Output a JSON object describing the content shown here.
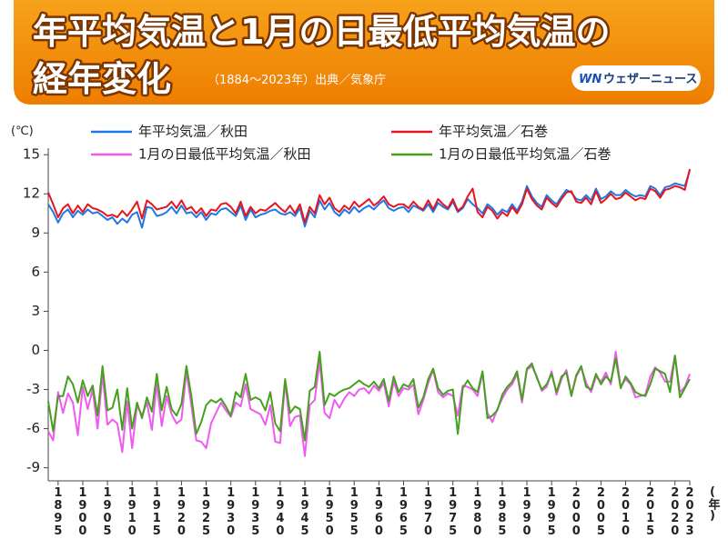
{
  "chart_data": {
    "type": "line",
    "title": [
      "年平均気温と1月の日最低平均気温の",
      "経年変化"
    ],
    "subtitle": "（1884〜2023年）出典／気象庁",
    "brand": {
      "mark": "WN",
      "name": "ウェザーニュース"
    },
    "y_label": "(℃)",
    "x_label": "(年)",
    "x": [
      1893,
      1894,
      1895,
      1896,
      1897,
      1898,
      1899,
      1900,
      1901,
      1902,
      1903,
      1904,
      1905,
      1906,
      1907,
      1908,
      1909,
      1910,
      1911,
      1912,
      1913,
      1914,
      1915,
      1916,
      1917,
      1918,
      1919,
      1920,
      1921,
      1922,
      1923,
      1924,
      1925,
      1926,
      1927,
      1928,
      1929,
      1930,
      1931,
      1932,
      1933,
      1934,
      1935,
      1936,
      1937,
      1938,
      1939,
      1940,
      1941,
      1942,
      1943,
      1944,
      1945,
      1946,
      1947,
      1948,
      1949,
      1950,
      1951,
      1952,
      1953,
      1954,
      1955,
      1956,
      1957,
      1958,
      1959,
      1960,
      1961,
      1962,
      1963,
      1964,
      1965,
      1966,
      1967,
      1968,
      1969,
      1970,
      1971,
      1972,
      1973,
      1974,
      1975,
      1976,
      1977,
      1978,
      1979,
      1980,
      1981,
      1982,
      1983,
      1984,
      1985,
      1986,
      1987,
      1988,
      1989,
      1990,
      1991,
      1992,
      1993,
      1994,
      1995,
      1996,
      1997,
      1998,
      1999,
      2000,
      2001,
      2002,
      2003,
      2004,
      2005,
      2006,
      2007,
      2008,
      2009,
      2010,
      2011,
      2012,
      2013,
      2014,
      2015,
      2016,
      2017,
      2018,
      2019,
      2020,
      2021,
      2022,
      2023
    ],
    "xlim": [
      1893,
      2023
    ],
    "xticks": [
      1895,
      1900,
      1905,
      1910,
      1915,
      1920,
      1925,
      1930,
      1935,
      1940,
      1945,
      1950,
      1955,
      1960,
      1965,
      1970,
      1975,
      1980,
      1985,
      1990,
      1995,
      2000,
      2005,
      2010,
      2015,
      2020,
      2023
    ],
    "ylim": [
      -10,
      15.5
    ],
    "yticks": [
      15,
      12,
      9,
      6,
      3,
      0,
      -3,
      -6,
      -9
    ],
    "grid": false,
    "series": [
      {
        "name": "年平均気温／秋田",
        "color": "#1e78e6",
        "values": [
          11.2,
          10.6,
          9.8,
          10.5,
          10.8,
          10.2,
          10.7,
          10.4,
          10.8,
          10.5,
          10.6,
          10.3,
          10.0,
          10.2,
          9.7,
          10.1,
          9.8,
          10.4,
          10.6,
          9.4,
          11.0,
          10.9,
          10.3,
          10.4,
          10.6,
          11.0,
          10.5,
          11.1,
          10.5,
          10.6,
          10.2,
          10.6,
          10.0,
          10.5,
          10.4,
          10.8,
          10.9,
          10.6,
          10.3,
          11.1,
          10.0,
          10.8,
          10.2,
          10.4,
          10.5,
          10.7,
          10.8,
          10.5,
          10.4,
          10.6,
          10.3,
          10.9,
          9.5,
          10.7,
          10.2,
          11.5,
          10.8,
          11.3,
          10.6,
          10.3,
          10.8,
          10.5,
          11.0,
          10.6,
          10.9,
          11.1,
          10.8,
          11.2,
          11.5,
          10.9,
          10.7,
          10.9,
          11.0,
          10.6,
          11.1,
          10.9,
          10.7,
          11.2,
          10.6,
          11.3,
          11.0,
          10.8,
          11.4,
          10.6,
          10.9,
          11.6,
          11.2,
          10.9,
          10.5,
          11.2,
          10.9,
          10.4,
          10.8,
          10.6,
          11.2,
          10.7,
          11.4,
          12.6,
          11.8,
          11.3,
          11.0,
          11.9,
          11.5,
          11.2,
          11.8,
          12.3,
          12.1,
          11.6,
          11.5,
          11.9,
          11.5,
          12.4,
          11.6,
          11.8,
          12.2,
          11.9,
          11.9,
          12.3,
          12.0,
          11.8,
          11.9,
          11.8,
          12.6,
          12.4,
          11.9,
          12.5,
          12.6,
          12.8,
          12.7,
          12.6,
          13.8
        ]
      },
      {
        "name": "年平均気温／石巻",
        "color": "#e8141e",
        "values": [
          12.1,
          11.2,
          10.2,
          10.9,
          11.2,
          10.5,
          11.1,
          10.6,
          11.2,
          10.9,
          10.8,
          10.6,
          10.3,
          10.4,
          10.2,
          10.7,
          10.3,
          10.8,
          11.4,
          10.1,
          11.5,
          11.2,
          10.8,
          10.9,
          11.0,
          11.4,
          10.9,
          11.5,
          10.8,
          11.0,
          10.5,
          10.9,
          10.3,
          10.8,
          10.7,
          11.2,
          11.3,
          11.0,
          10.5,
          11.4,
          10.3,
          11.0,
          10.5,
          10.8,
          10.7,
          11.0,
          11.3,
          10.9,
          10.6,
          11.1,
          10.5,
          11.2,
          9.8,
          11.0,
          10.5,
          11.9,
          11.2,
          11.7,
          10.9,
          10.6,
          11.1,
          10.8,
          11.4,
          11.0,
          11.3,
          11.6,
          11.1,
          11.4,
          11.8,
          11.2,
          11.0,
          11.2,
          11.2,
          10.9,
          11.4,
          11.0,
          10.8,
          11.5,
          10.8,
          11.6,
          11.2,
          10.9,
          11.6,
          10.7,
          11.0,
          11.8,
          12.4,
          10.6,
          10.2,
          11.0,
          10.7,
          10.1,
          10.6,
          10.3,
          11.0,
          10.5,
          11.2,
          12.4,
          11.6,
          11.1,
          10.8,
          11.7,
          11.3,
          11.0,
          11.6,
          12.1,
          12.2,
          11.4,
          11.3,
          11.7,
          11.2,
          12.2,
          11.3,
          11.6,
          12.0,
          11.6,
          11.7,
          12.1,
          11.8,
          11.5,
          11.7,
          11.6,
          12.4,
          12.2,
          11.7,
          12.3,
          12.4,
          12.6,
          12.5,
          12.3,
          13.9
        ]
      },
      {
        "name": "1月の日最低平均気温／秋田",
        "color": "#f05af0",
        "values": [
          -6.2,
          -6.9,
          -3.2,
          -4.8,
          -3.3,
          -4.0,
          -6.5,
          -2.8,
          -4.5,
          -3.0,
          -6.0,
          -1.8,
          -5.7,
          -5.3,
          -5.6,
          -7.8,
          -3.9,
          -7.5,
          -4.2,
          -5.0,
          -4.0,
          -6.1,
          -2.5,
          -5.8,
          -3.5,
          -4.9,
          -5.6,
          -5.3,
          -1.6,
          -4.2,
          -6.9,
          -7.0,
          -7.5,
          -5.6,
          -4.8,
          -4.0,
          -4.6,
          -5.1,
          -4.0,
          -4.3,
          -2.6,
          -4.5,
          -4.7,
          -4.9,
          -5.7,
          -4.2,
          -7.0,
          -7.1,
          -2.4,
          -5.8,
          -5.1,
          -5.0,
          -8.1,
          -4.2,
          -3.8,
          -0.8,
          -4.8,
          -5.2,
          -3.8,
          -4.4,
          -3.7,
          -3.2,
          -3.5,
          -3.0,
          -2.9,
          -3.3,
          -2.7,
          -3.1,
          -2.5,
          -4.3,
          -2.4,
          -3.5,
          -2.9,
          -3.0,
          -2.6,
          -4.9,
          -3.8,
          -2.5,
          -1.5,
          -3.2,
          -3.6,
          -3.3,
          -3.5,
          -5.0,
          -2.7,
          -2.8,
          -3.0,
          -3.5,
          -1.7,
          -4.8,
          -5.5,
          -4.5,
          -3.7,
          -3.0,
          -2.6,
          -1.8,
          -4.0,
          -1.5,
          -1.2,
          -2.0,
          -3.1,
          -2.8,
          -1.6,
          -3.4,
          -2.2,
          -1.5,
          -3.4,
          -2.0,
          -1.3,
          -2.5,
          -3.2,
          -2.0,
          -2.4,
          -1.7,
          -2.6,
          -0.1,
          -2.8,
          -2.2,
          -2.6,
          -3.6,
          -3.5,
          -3.4,
          -2.0,
          -1.3,
          -1.7,
          -2.4,
          -2.4,
          -0.4,
          -3.2,
          -2.8,
          -1.8
        ]
      },
      {
        "name": "1月の日最低平均気温／石巻",
        "color": "#46a01e",
        "values": [
          -3.9,
          -6.2,
          -3.5,
          -3.5,
          -2.0,
          -2.6,
          -4.0,
          -2.3,
          -3.5,
          -2.7,
          -5.0,
          -1.2,
          -4.6,
          -4.4,
          -3.0,
          -6.1,
          -2.9,
          -6.0,
          -4.0,
          -5.2,
          -3.6,
          -4.7,
          -1.8,
          -4.6,
          -2.8,
          -4.5,
          -5.0,
          -4.1,
          -1.2,
          -3.5,
          -6.4,
          -5.5,
          -4.2,
          -3.8,
          -4.0,
          -3.7,
          -4.3,
          -5.0,
          -3.2,
          -3.6,
          -1.8,
          -3.8,
          -3.6,
          -3.8,
          -4.6,
          -3.2,
          -5.6,
          -6.2,
          -2.2,
          -4.8,
          -4.3,
          -4.5,
          -6.9,
          -3.1,
          -2.8,
          -0.1,
          -4.2,
          -3.3,
          -3.5,
          -3.2,
          -3.0,
          -2.9,
          -2.6,
          -2.3,
          -2.6,
          -2.8,
          -2.4,
          -2.9,
          -2.2,
          -3.9,
          -2.0,
          -3.2,
          -2.6,
          -2.8,
          -2.2,
          -4.4,
          -3.6,
          -2.2,
          -1.4,
          -2.9,
          -3.4,
          -3.1,
          -3.0,
          -6.4,
          -2.9,
          -2.3,
          -2.9,
          -3.2,
          -1.6,
          -5.2,
          -5.0,
          -4.6,
          -3.4,
          -2.8,
          -2.4,
          -1.6,
          -3.8,
          -1.4,
          -1.0,
          -2.1,
          -3.0,
          -2.6,
          -1.8,
          -3.2,
          -2.0,
          -1.7,
          -3.5,
          -1.9,
          -1.2,
          -2.8,
          -3.0,
          -1.8,
          -2.6,
          -2.0,
          -2.4,
          -0.6,
          -2.9,
          -2.0,
          -2.5,
          -3.2,
          -3.4,
          -3.5,
          -2.6,
          -1.4,
          -1.6,
          -1.8,
          -3.2,
          -0.4,
          -3.6,
          -2.9,
          -2.2
        ]
      }
    ]
  }
}
